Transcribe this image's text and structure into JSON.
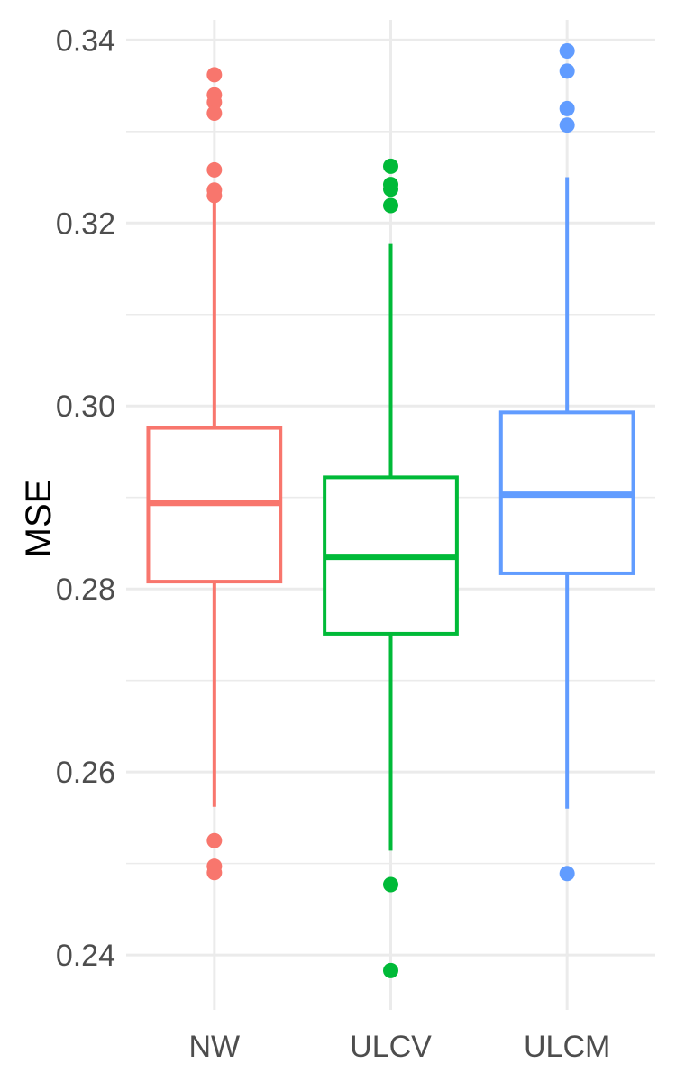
{
  "chart_data": {
    "type": "box",
    "title": "",
    "xlabel": "",
    "ylabel": "MSE",
    "ylim": [
      0.234,
      0.3422
    ],
    "y_ticks": [
      0.24,
      0.26,
      0.28,
      0.3,
      0.32,
      0.34
    ],
    "y_tick_labels": [
      "0.24",
      "0.26",
      "0.28",
      "0.30",
      "0.32",
      "0.34"
    ],
    "grid": true,
    "legend": "none",
    "categories": [
      "NW",
      "ULCV",
      "ULCM"
    ],
    "series": [
      {
        "category": "NW",
        "color": "#F8766D",
        "whisker_low": 0.2562,
        "q1": 0.2808,
        "median": 0.2894,
        "q3": 0.2976,
        "whisker_high": 0.3228,
        "outliers": [
          0.3362,
          0.334,
          0.3332,
          0.332,
          0.3258,
          0.3236,
          0.323,
          0.2525,
          0.2497,
          0.249
        ]
      },
      {
        "category": "ULCV",
        "color": "#00BA38",
        "whisker_low": 0.2514,
        "q1": 0.2751,
        "median": 0.2835,
        "q3": 0.2922,
        "whisker_high": 0.3177,
        "outliers": [
          0.3262,
          0.3242,
          0.3237,
          0.3219,
          0.2477,
          0.2383
        ]
      },
      {
        "category": "ULCM",
        "color": "#619CFF",
        "whisker_low": 0.256,
        "q1": 0.2817,
        "median": 0.2903,
        "q3": 0.2993,
        "whisker_high": 0.325,
        "outliers": [
          0.3388,
          0.3366,
          0.3325,
          0.3307,
          0.2489
        ]
      }
    ]
  }
}
